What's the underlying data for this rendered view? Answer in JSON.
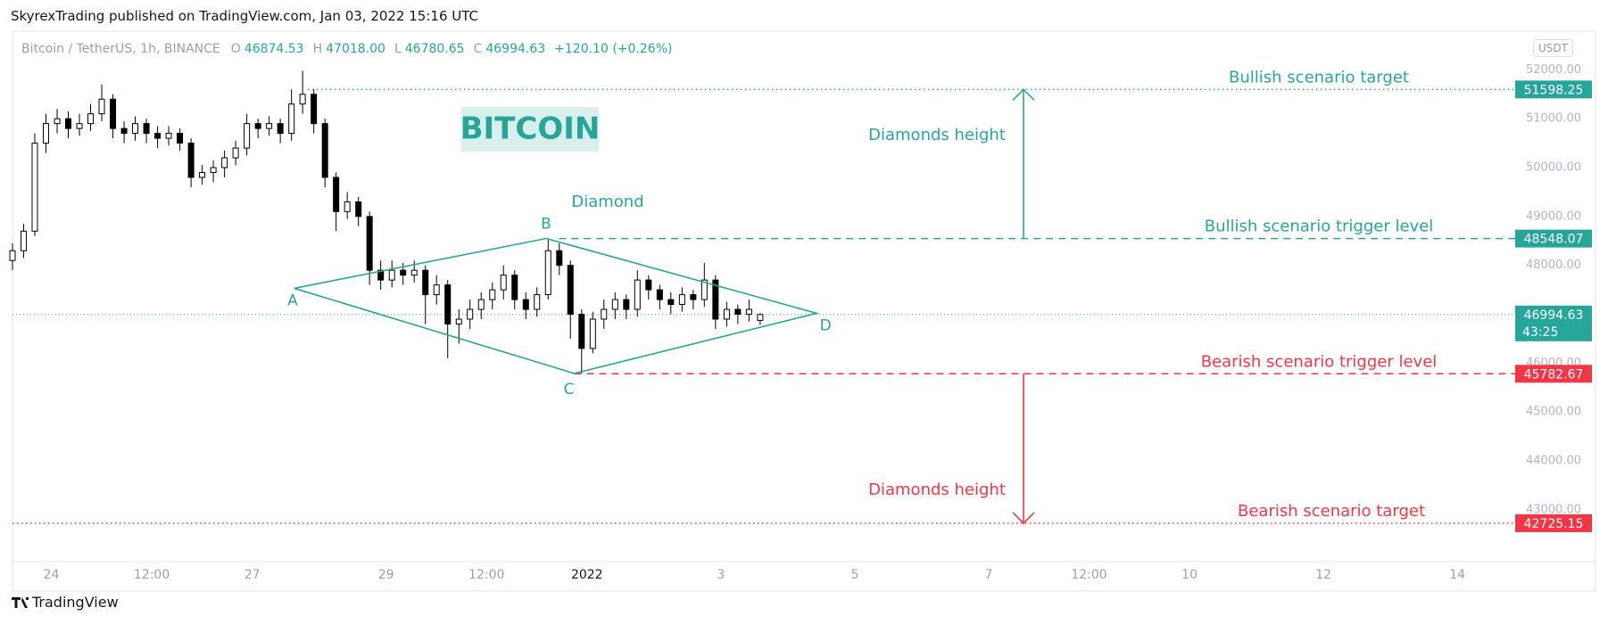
{
  "header": {
    "published": "SkyrexTrading published on TradingView.com, Jan 03, 2022 15:16 UTC",
    "footer": "TradingView"
  },
  "legend": {
    "symbol": "Bitcoin / TetherUS, 1h, BINANCE",
    "fields": [
      {
        "key": "O",
        "value": "46874.53"
      },
      {
        "key": "H",
        "value": "47018.00"
      },
      {
        "key": "L",
        "value": "46780.65"
      },
      {
        "key": "C",
        "value": "46994.63"
      }
    ],
    "change": "+120.10 (+0.26%)",
    "currency": "USDT"
  },
  "chart_data": {
    "type": "candlestick",
    "title": "BITCOIN",
    "x": [
      -0.58,
      -0.413,
      -0.247,
      -0.08,
      0.087,
      0.253,
      0.42,
      0.587,
      0.753,
      0.92,
      1.087,
      1.253,
      1.42,
      1.587,
      1.753,
      1.92,
      2.087,
      2.253,
      2.42,
      2.587,
      2.753,
      2.92,
      3.087,
      3.253,
      3.42,
      3.587,
      3.753,
      3.92,
      4.087,
      4.253,
      4.42,
      4.587,
      4.753,
      4.92,
      5.087,
      5.253,
      5.42,
      5.587,
      5.753,
      5.92,
      6.087,
      6.253,
      6.42,
      6.587,
      6.753,
      6.92,
      7.087,
      7.253,
      7.42,
      7.587,
      7.753,
      7.92,
      8.087,
      8.253,
      8.42,
      8.587,
      8.753,
      8.92,
      9.087,
      9.253,
      9.42,
      9.587,
      9.753,
      9.92,
      10.087,
      10.253,
      10.42,
      10.587
    ],
    "open": [
      48100,
      48300,
      48700,
      50500,
      50900,
      51000,
      50800,
      50900,
      51100,
      51400,
      50800,
      50700,
      50900,
      50700,
      50600,
      50700,
      50500,
      49800,
      49900,
      50000,
      50200,
      50400,
      50900,
      50800,
      50900,
      50700,
      51300,
      51500,
      50900,
      49800,
      49100,
      49300,
      49000,
      47900,
      47700,
      47900,
      47800,
      47900,
      47400,
      47600,
      46800,
      46900,
      47100,
      47300,
      47500,
      47800,
      47300,
      47100,
      47400,
      48300,
      48000,
      47000,
      46300,
      46900,
      47100,
      47300,
      47100,
      47700,
      47500,
      47300,
      47200,
      47400,
      47300,
      47700,
      46900,
      47100,
      47000,
      46874.53
    ],
    "high": [
      48450,
      48850,
      50700,
      51100,
      51200,
      51150,
      51100,
      51300,
      51700,
      51500,
      50950,
      51050,
      51000,
      50850,
      50850,
      50800,
      50600,
      50050,
      50150,
      50350,
      50550,
      51100,
      51000,
      51050,
      51000,
      51600,
      51980,
      51600,
      51000,
      49900,
      49500,
      49400,
      49100,
      48100,
      48100,
      48050,
      48100,
      48000,
      47800,
      47700,
      47100,
      47300,
      47450,
      47650,
      48000,
      47900,
      47450,
      47550,
      48550,
      48450,
      48100,
      47100,
      47050,
      47300,
      47450,
      47400,
      47900,
      47800,
      47600,
      47450,
      47550,
      47500,
      48050,
      47800,
      47250,
      47200,
      47300,
      47018
    ],
    "low": [
      47900,
      48150,
      48600,
      50300,
      50700,
      50600,
      50650,
      50750,
      50950,
      50600,
      50500,
      50550,
      50500,
      50400,
      50450,
      50350,
      49600,
      49650,
      49700,
      49800,
      50050,
      50250,
      50600,
      50650,
      50500,
      50550,
      51100,
      50700,
      49600,
      48700,
      48950,
      48800,
      47600,
      47500,
      47550,
      47600,
      47650,
      46800,
      47200,
      46100,
      46400,
      46700,
      46900,
      47100,
      47300,
      47100,
      46900,
      46950,
      47300,
      47800,
      46500,
      45790,
      46200,
      46700,
      46900,
      46900,
      46950,
      47300,
      47100,
      47000,
      47050,
      47100,
      47150,
      46700,
      46750,
      46800,
      46850,
      46780.65
    ],
    "close": [
      48300,
      48700,
      50500,
      50900,
      51000,
      50800,
      50900,
      51100,
      51400,
      50800,
      50700,
      50900,
      50700,
      50600,
      50700,
      50500,
      49800,
      49900,
      50000,
      50200,
      50400,
      50900,
      50800,
      50900,
      50700,
      51300,
      51500,
      50900,
      49800,
      49100,
      49300,
      49000,
      47900,
      47700,
      47900,
      47800,
      47900,
      47400,
      47600,
      46800,
      46900,
      47100,
      47300,
      47500,
      47800,
      47300,
      47100,
      47400,
      48300,
      48000,
      47000,
      46300,
      46900,
      47100,
      47300,
      47100,
      47700,
      47500,
      47300,
      47200,
      47400,
      47300,
      47700,
      46900,
      47100,
      47000,
      47100,
      46994.63
    ],
    "xlim": [
      -0.58,
      21.77
    ],
    "xticks": [
      {
        "value": 0,
        "label": "24"
      },
      {
        "value": 1.5,
        "label": "12:00"
      },
      {
        "value": 3,
        "label": "27"
      },
      {
        "value": 5,
        "label": "29"
      },
      {
        "value": 6.5,
        "label": "12:00"
      },
      {
        "value": 8,
        "label": "2022"
      },
      {
        "value": 10,
        "label": "3"
      },
      {
        "value": 12,
        "label": "5"
      },
      {
        "value": 14,
        "label": "7"
      },
      {
        "value": 15.5,
        "label": "12:00"
      },
      {
        "value": 17,
        "label": "10"
      },
      {
        "value": 19,
        "label": "12"
      },
      {
        "value": 21,
        "label": "14"
      }
    ],
    "ylim": [
      41940,
      52790
    ],
    "yticks": [
      {
        "value": 43000,
        "label": "43000.00"
      },
      {
        "value": 44000,
        "label": "44000.00"
      },
      {
        "value": 45000,
        "label": "45000.00"
      },
      {
        "value": 46000,
        "label": "46000.00"
      },
      {
        "value": 47000,
        "label": "47000.00"
      },
      {
        "value": 48000,
        "label": "48000.00"
      },
      {
        "value": 49000,
        "label": "49000.00"
      },
      {
        "value": 50000,
        "label": "50000.00"
      },
      {
        "value": 51000,
        "label": "51000.00"
      },
      {
        "value": 52000,
        "label": "52000.00"
      }
    ],
    "grid": false,
    "up_color": "#ffffff",
    "down_color": "#000000",
    "levels": [
      {
        "name": "Bullish scenario target",
        "value": 51598.25,
        "color": "#26a69a",
        "style": "dotted",
        "from": 3.83
      },
      {
        "name": "Bullish scenario trigger level",
        "value": 48548.07,
        "color": "#26a69a",
        "style": "dashed",
        "from": 7.58
      },
      {
        "name": "Bearish scenario trigger level",
        "value": 45782.67,
        "color": "#f23645",
        "style": "dashed",
        "from": 7.81
      },
      {
        "name": "Bearish scenario target",
        "value": 42725.15,
        "color": "#f23645",
        "style": "dotted",
        "from": -0.58
      }
    ],
    "last_price": {
      "value": 46994.63,
      "countdown": "43:25",
      "color": "#26a69a"
    },
    "pattern": {
      "name": "Diamond",
      "color": "#26a69a",
      "points": [
        {
          "label": "A",
          "x": 3.63,
          "y": 47530
        },
        {
          "label": "B",
          "x": 7.39,
          "y": 48550
        },
        {
          "label": "D",
          "x": 11.43,
          "y": 47020
        },
        {
          "label": "C",
          "x": 7.81,
          "y": 45790
        }
      ]
    },
    "height_notes": [
      {
        "text": "Diamonds height",
        "color": "#26a69a"
      },
      {
        "text": "Diamonds height",
        "color": "#f23645"
      }
    ]
  }
}
